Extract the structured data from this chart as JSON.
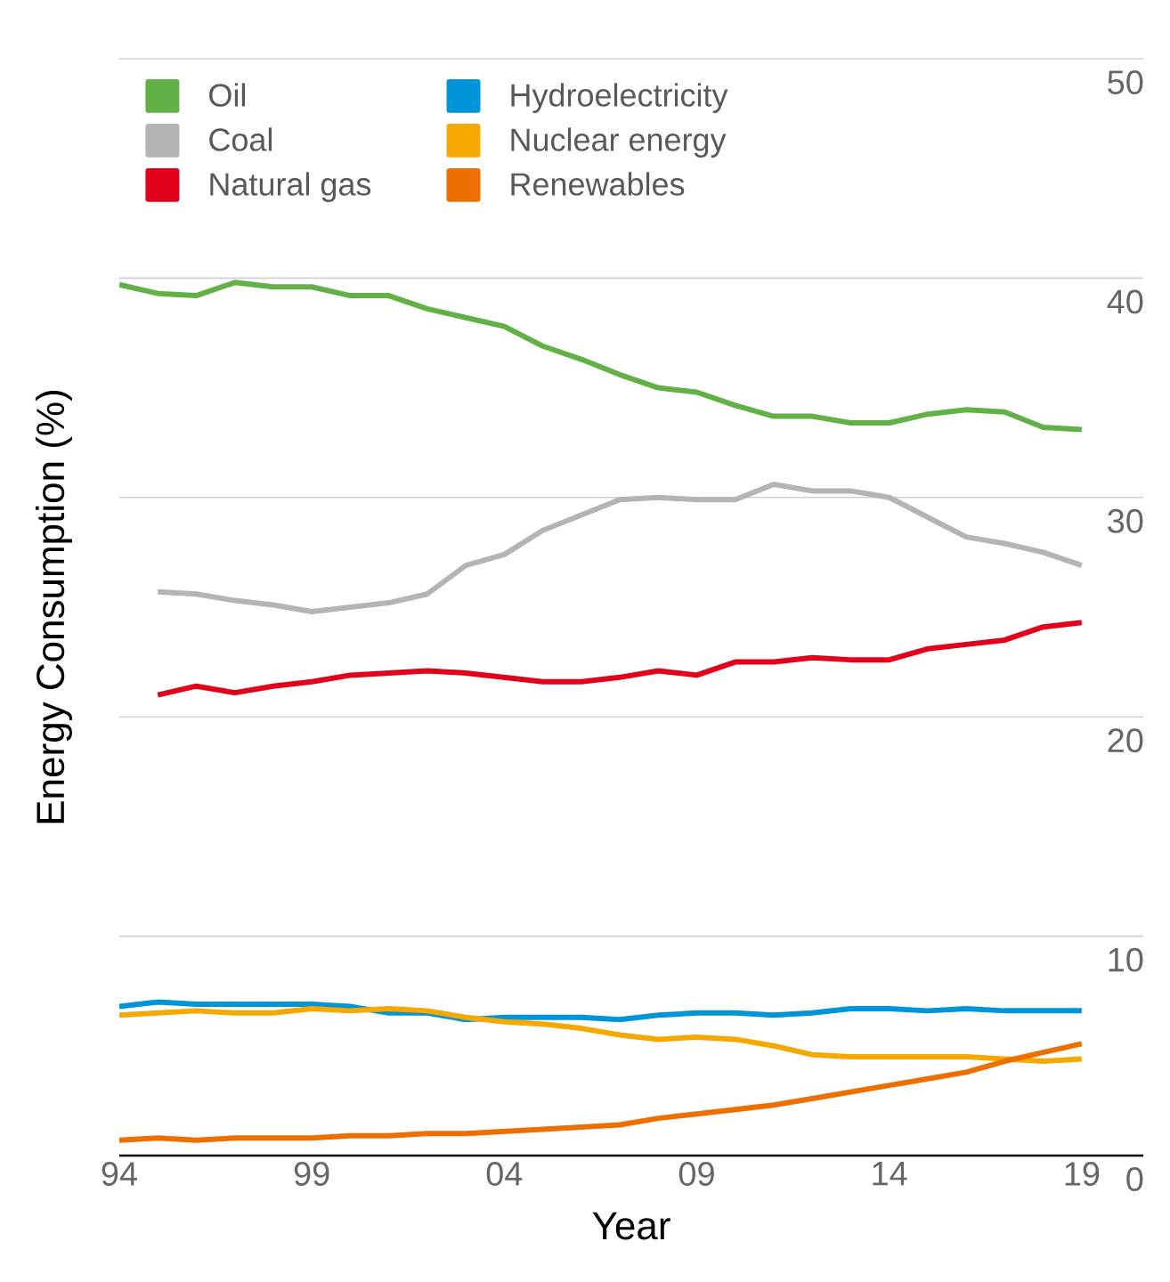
{
  "chart_data": {
    "type": "line",
    "xlabel": "Year",
    "ylabel": "Energy Consumption (%)",
    "x": [
      1994,
      1995,
      1996,
      1997,
      1998,
      1999,
      2000,
      2001,
      2002,
      2003,
      2004,
      2005,
      2006,
      2007,
      2008,
      2009,
      2010,
      2011,
      2012,
      2013,
      2014,
      2015,
      2016,
      2017,
      2018,
      2019
    ],
    "series": [
      {
        "name": "Oil",
        "color": "#62b146",
        "values": [
          39.7,
          39.3,
          39.2,
          39.8,
          39.6,
          39.6,
          39.2,
          39.2,
          38.6,
          38.2,
          37.8,
          36.9,
          36.3,
          35.6,
          35.0,
          34.8,
          34.2,
          33.7,
          33.7,
          33.4,
          33.4,
          33.8,
          34.0,
          33.9,
          33.2,
          33.1
        ]
      },
      {
        "name": "Coal",
        "color": "#b4b4b4",
        "values": [
          null,
          25.7,
          25.6,
          25.3,
          25.1,
          24.8,
          25.0,
          25.2,
          25.6,
          26.9,
          27.4,
          28.5,
          29.2,
          29.9,
          30.0,
          29.9,
          29.9,
          30.6,
          30.3,
          30.3,
          30.0,
          29.1,
          28.2,
          27.9,
          27.5,
          26.9
        ]
      },
      {
        "name": "Natural gas",
        "color": "#e2001a",
        "values": [
          null,
          21.0,
          21.4,
          21.1,
          21.4,
          21.6,
          21.9,
          22.0,
          22.1,
          22.0,
          21.8,
          21.6,
          21.6,
          21.8,
          22.1,
          21.9,
          22.5,
          22.5,
          22.7,
          22.6,
          22.6,
          23.1,
          23.3,
          23.5,
          24.1,
          24.3
        ]
      },
      {
        "name": "Hydroelectricity",
        "color": "#0095d9",
        "values": [
          6.8,
          7.0,
          6.9,
          6.9,
          6.9,
          6.9,
          6.8,
          6.5,
          6.5,
          6.2,
          6.3,
          6.3,
          6.3,
          6.2,
          6.4,
          6.5,
          6.5,
          6.4,
          6.5,
          6.7,
          6.7,
          6.6,
          6.7,
          6.6,
          6.6,
          6.6
        ]
      },
      {
        "name": "Nuclear energy",
        "color": "#f5a800",
        "values": [
          6.4,
          6.5,
          6.6,
          6.5,
          6.5,
          6.7,
          6.6,
          6.7,
          6.6,
          6.3,
          6.1,
          6.0,
          5.8,
          5.5,
          5.3,
          5.4,
          5.3,
          5.0,
          4.6,
          4.5,
          4.5,
          4.5,
          4.5,
          4.4,
          4.3,
          4.4
        ]
      },
      {
        "name": "Renewables",
        "color": "#ec6f00",
        "values": [
          0.7,
          0.8,
          0.7,
          0.8,
          0.8,
          0.8,
          0.9,
          0.9,
          1.0,
          1.0,
          1.1,
          1.2,
          1.3,
          1.4,
          1.7,
          1.9,
          2.1,
          2.3,
          2.6,
          2.9,
          3.2,
          3.5,
          3.8,
          4.3,
          4.7,
          5.1
        ]
      }
    ],
    "xlim": [
      1994,
      2020.6
    ],
    "ylim": [
      0,
      50
    ],
    "xticks": [
      {
        "value": 1994,
        "label": "94"
      },
      {
        "value": 1999,
        "label": "99"
      },
      {
        "value": 2004,
        "label": "04"
      },
      {
        "value": 2009,
        "label": "09"
      },
      {
        "value": 2014,
        "label": "14"
      },
      {
        "value": 2019,
        "label": "19"
      }
    ],
    "yticks": [
      0,
      10,
      20,
      30,
      40,
      50
    ],
    "grid": "y",
    "legend": "top left",
    "marker": "none",
    "line_style": "solid"
  }
}
